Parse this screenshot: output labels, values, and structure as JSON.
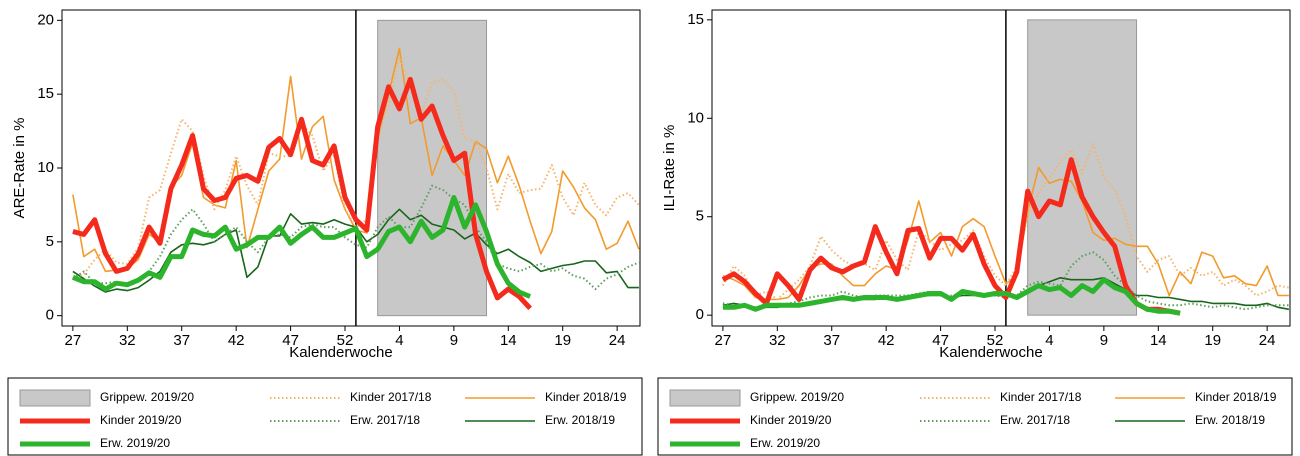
{
  "chart_data": [
    {
      "type": "line",
      "y_label": "ARE-Rate in %",
      "x_label": "Kalenderwoche",
      "categories": [
        "27",
        null,
        null,
        null,
        null,
        "32",
        null,
        null,
        null,
        null,
        "37",
        null,
        null,
        null,
        null,
        "42",
        null,
        null,
        null,
        null,
        "47",
        null,
        null,
        null,
        null,
        "52",
        null,
        null,
        null,
        null,
        "4",
        null,
        null,
        null,
        null,
        "9",
        null,
        null,
        null,
        null,
        "14",
        null,
        null,
        null,
        null,
        "19",
        null,
        null,
        null,
        null,
        "24",
        null,
        null
      ],
      "ylim": [
        -0.7,
        20.7
      ],
      "yticks": [
        0,
        5,
        10,
        15,
        20
      ],
      "span": {
        "name": "Grippew. 2019/20",
        "color": "#c8c8c8",
        "from": 28,
        "to": 38,
        "ylim": [
          0,
          20
        ]
      },
      "series": [
        {
          "name": "Kinder 2017/18",
          "color": "#f5b46a",
          "linestyle": "dotted",
          "linewidth": 2,
          "values": [
            2.5,
            2.8,
            3.8,
            4.5,
            3.6,
            3.5,
            4.6,
            8.0,
            8.5,
            11.0,
            13.3,
            12.5,
            9.5,
            7.2,
            8.5,
            10.8,
            8.8,
            7.5,
            11.0,
            10.8,
            10.8,
            13.0,
            12.2,
            9.8,
            10.9,
            7.2,
            6.0,
            6.5,
            12.6,
            14.2,
            17.5,
            15.5,
            13.6,
            15.8,
            16.0,
            15.2,
            12.0,
            11.8,
            10.0,
            7.2,
            9.6,
            8.3,
            8.5,
            8.6,
            10.2,
            8.0,
            6.8,
            9.0,
            7.5,
            6.8,
            8.0,
            8.3,
            7.5
          ]
        },
        {
          "name": "Kinder 2018/19",
          "color": "#f39a2c",
          "linestyle": "solid",
          "linewidth": 1.6,
          "values": [
            8.2,
            4.0,
            4.5,
            3.0,
            3.1,
            3.2,
            3.8,
            5.5,
            5.0,
            8.7,
            9.5,
            11.7,
            8.0,
            7.5,
            7.3,
            10.5,
            4.6,
            7.2,
            9.8,
            10.6,
            16.2,
            10.6,
            12.8,
            13.5,
            9.2,
            7.2,
            5.8,
            5.6,
            12.0,
            15.0,
            18.1,
            13.0,
            13.4,
            9.5,
            11.5,
            10.5,
            9.5,
            11.8,
            11.3,
            9.0,
            10.8,
            8.8,
            6.4,
            4.2,
            5.7,
            9.8,
            8.7,
            7.3,
            6.5,
            4.5,
            4.9,
            6.4,
            4.5
          ]
        },
        {
          "name": "Kinder 2019/20",
          "color": "#f42a1c",
          "linestyle": "solid",
          "linewidth": 5,
          "values": [
            5.7,
            5.5,
            6.5,
            4.2,
            3.0,
            3.2,
            4.2,
            6.0,
            4.9,
            8.6,
            10.2,
            12.2,
            8.6,
            7.8,
            8.0,
            9.3,
            9.5,
            9.1,
            11.4,
            12.0,
            10.9,
            13.3,
            10.5,
            10.2,
            11.5,
            8.0,
            6.5,
            5.8,
            12.8,
            15.5,
            14.0,
            16.0,
            13.3,
            14.2,
            12.2,
            10.5,
            11.0,
            5.5,
            3.0,
            1.2,
            1.8,
            1.3,
            0.5,
            null,
            null,
            null,
            null,
            null,
            null,
            null,
            null,
            null,
            null
          ]
        },
        {
          "name": "Erw. 2017/18",
          "color": "#5e9e5e",
          "linestyle": "dotted",
          "linewidth": 2,
          "values": [
            2.5,
            3.0,
            2.2,
            2.2,
            2.3,
            2.0,
            2.3,
            3.0,
            4.0,
            5.5,
            6.5,
            7.2,
            6.2,
            5.0,
            5.5,
            6.0,
            5.0,
            4.3,
            5.3,
            5.5,
            5.3,
            6.0,
            6.2,
            6.0,
            6.0,
            5.3,
            4.8,
            4.6,
            6.0,
            6.7,
            6.0,
            6.0,
            7.3,
            8.8,
            8.5,
            7.9,
            7.5,
            6.0,
            5.0,
            3.5,
            3.2,
            3.0,
            3.3,
            3.5,
            3.0,
            3.2,
            2.7,
            2.5,
            1.8,
            2.5,
            2.8,
            3.3,
            3.6
          ]
        },
        {
          "name": "Erw. 2018/19",
          "color": "#17661a",
          "linestyle": "solid",
          "linewidth": 1.6,
          "values": [
            3.0,
            2.5,
            2.0,
            1.6,
            1.8,
            1.7,
            1.9,
            2.4,
            3.0,
            4.3,
            4.8,
            4.9,
            4.8,
            5.0,
            5.5,
            5.8,
            2.6,
            3.3,
            5.4,
            5.4,
            6.9,
            6.2,
            6.3,
            6.2,
            6.5,
            6.2,
            6.0,
            5.0,
            5.5,
            6.5,
            7.2,
            6.5,
            6.8,
            6.2,
            6.0,
            5.8,
            5.2,
            5.6,
            4.8,
            4.2,
            4.5,
            4.0,
            3.6,
            3.0,
            3.2,
            3.4,
            3.5,
            3.7,
            3.7,
            2.9,
            3.0,
            1.9,
            1.9
          ]
        },
        {
          "name": "Erw. 2019/20",
          "color": "#2db42d",
          "linestyle": "solid",
          "linewidth": 5,
          "values": [
            2.6,
            2.3,
            2.3,
            1.8,
            2.2,
            2.1,
            2.4,
            2.9,
            2.6,
            4.0,
            4.0,
            5.8,
            5.5,
            5.4,
            6.0,
            4.5,
            4.8,
            5.3,
            5.3,
            6.0,
            4.9,
            5.5,
            6.0,
            5.3,
            5.3,
            5.6,
            5.9,
            4.0,
            4.5,
            5.7,
            6.0,
            5.0,
            6.4,
            5.3,
            5.8,
            8.0,
            6.0,
            7.5,
            5.7,
            3.5,
            2.2,
            1.6,
            1.3,
            null,
            null,
            null,
            null,
            null,
            null,
            null,
            null,
            null,
            null
          ]
        }
      ]
    },
    {
      "type": "line",
      "y_label": "ILI-Rate in %",
      "x_label": "Kalenderwoche",
      "categories": [
        "27",
        null,
        null,
        null,
        null,
        "32",
        null,
        null,
        null,
        null,
        "37",
        null,
        null,
        null,
        null,
        "42",
        null,
        null,
        null,
        null,
        "47",
        null,
        null,
        null,
        null,
        "52",
        null,
        null,
        null,
        null,
        "4",
        null,
        null,
        null,
        null,
        "9",
        null,
        null,
        null,
        null,
        "14",
        null,
        null,
        null,
        null,
        "19",
        null,
        null,
        null,
        null,
        "24",
        null,
        null
      ],
      "ylim": [
        -0.55,
        15.5
      ],
      "yticks": [
        0,
        5,
        10,
        15
      ],
      "span": {
        "name": "Grippew. 2019/20",
        "color": "#c8c8c8",
        "from": 28,
        "to": 38,
        "ylim": [
          0,
          15
        ]
      },
      "series": [
        {
          "name": "Kinder 2017/18",
          "color": "#f5b46a",
          "linestyle": "dotted",
          "linewidth": 2,
          "values": [
            1.5,
            2.5,
            2.0,
            1.0,
            1.2,
            0.8,
            1.3,
            1.8,
            2.5,
            4.0,
            3.3,
            2.8,
            2.5,
            2.6,
            2.3,
            3.8,
            2.8,
            2.3,
            4.3,
            3.8,
            3.3,
            3.6,
            3.8,
            4.3,
            3.0,
            2.0,
            1.5,
            2.5,
            5.0,
            6.2,
            7.0,
            7.8,
            8.4,
            7.2,
            8.7,
            7.0,
            6.4,
            5.0,
            3.0,
            2.2,
            2.8,
            3.0,
            2.0,
            2.4,
            2.0,
            2.2,
            1.5,
            1.8,
            1.5,
            1.0,
            1.2,
            1.5,
            1.4
          ]
        },
        {
          "name": "Kinder 2018/19",
          "color": "#f39a2c",
          "linestyle": "solid",
          "linewidth": 1.6,
          "values": [
            2.0,
            1.8,
            1.5,
            0.9,
            0.8,
            0.8,
            0.9,
            1.5,
            2.4,
            2.6,
            2.6,
            2.0,
            1.5,
            1.5,
            2.1,
            2.5,
            2.3,
            3.8,
            5.8,
            3.7,
            4.2,
            3.0,
            4.5,
            4.9,
            4.5,
            3.0,
            1.6,
            2.0,
            5.3,
            7.5,
            6.7,
            6.9,
            6.8,
            5.8,
            4.2,
            3.8,
            3.9,
            3.6,
            3.5,
            3.5,
            2.6,
            1.0,
            2.2,
            1.6,
            3.2,
            3.0,
            1.9,
            2.0,
            1.6,
            1.5,
            2.5,
            1.0,
            1.0
          ]
        },
        {
          "name": "Kinder 2019/20",
          "color": "#f42a1c",
          "linestyle": "solid",
          "linewidth": 5,
          "values": [
            1.8,
            2.1,
            1.7,
            1.1,
            0.6,
            2.1,
            1.5,
            0.8,
            2.3,
            2.9,
            2.4,
            2.2,
            2.5,
            2.7,
            4.5,
            3.2,
            2.1,
            4.3,
            4.4,
            2.9,
            3.9,
            3.9,
            3.3,
            4.1,
            2.6,
            1.5,
            0.9,
            2.2,
            6.3,
            5.0,
            5.8,
            5.6,
            7.9,
            6.0,
            5.0,
            4.2,
            3.5,
            1.5,
            0.6,
            0.3,
            0.3,
            0.2,
            0.1,
            null,
            null,
            null,
            null,
            null,
            null,
            null,
            null,
            null,
            null
          ]
        },
        {
          "name": "Erw. 2017/18",
          "color": "#5e9e5e",
          "linestyle": "dotted",
          "linewidth": 2,
          "values": [
            0.6,
            0.5,
            0.5,
            0.4,
            0.5,
            0.5,
            0.6,
            0.7,
            0.9,
            1.0,
            1.0,
            1.2,
            1.0,
            0.9,
            1.0,
            1.0,
            1.0,
            1.0,
            1.1,
            1.2,
            1.0,
            1.0,
            1.1,
            1.1,
            1.0,
            1.0,
            0.9,
            1.0,
            1.5,
            1.7,
            1.6,
            1.5,
            2.5,
            3.0,
            3.2,
            2.8,
            2.0,
            1.5,
            1.0,
            0.7,
            0.6,
            0.5,
            0.5,
            0.6,
            0.5,
            0.4,
            0.5,
            0.4,
            0.3,
            0.4,
            0.5,
            0.5,
            0.5
          ]
        },
        {
          "name": "Erw. 2018/19",
          "color": "#17661a",
          "linestyle": "solid",
          "linewidth": 1.6,
          "values": [
            0.5,
            0.6,
            0.5,
            0.4,
            0.4,
            0.4,
            0.5,
            0.5,
            0.6,
            0.7,
            0.8,
            0.8,
            0.8,
            0.8,
            0.8,
            0.9,
            0.8,
            0.9,
            1.0,
            1.0,
            1.0,
            0.9,
            1.0,
            1.0,
            1.0,
            1.0,
            1.0,
            1.0,
            1.3,
            1.5,
            1.7,
            1.9,
            1.8,
            1.8,
            1.8,
            1.9,
            1.6,
            1.3,
            1.0,
            1.0,
            0.9,
            0.9,
            0.8,
            0.7,
            0.7,
            0.6,
            0.6,
            0.6,
            0.5,
            0.5,
            0.6,
            0.4,
            0.3
          ]
        },
        {
          "name": "Erw. 2019/20",
          "color": "#2db42d",
          "linestyle": "solid",
          "linewidth": 5,
          "values": [
            0.4,
            0.4,
            0.5,
            0.3,
            0.5,
            0.5,
            0.5,
            0.5,
            0.6,
            0.7,
            0.8,
            0.9,
            0.8,
            0.9,
            0.9,
            0.9,
            0.8,
            0.9,
            1.0,
            1.1,
            1.1,
            0.8,
            1.2,
            1.1,
            1.0,
            1.1,
            1.1,
            0.9,
            1.2,
            1.5,
            1.3,
            1.4,
            1.0,
            1.5,
            1.2,
            1.8,
            1.4,
            1.2,
            0.6,
            0.3,
            0.2,
            0.2,
            0.1,
            null,
            null,
            null,
            null,
            null,
            null,
            null,
            null,
            null,
            null
          ]
        }
      ]
    }
  ]
}
